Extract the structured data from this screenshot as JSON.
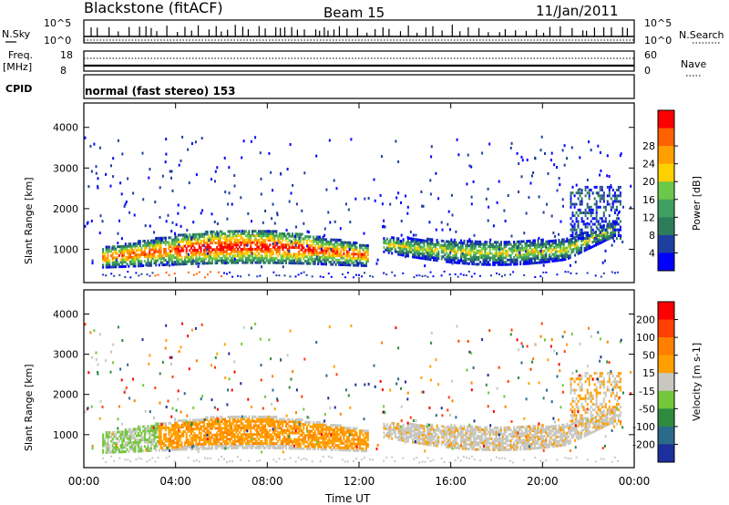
{
  "header": {
    "station": "Blackstone (fitACF)",
    "beam": "Beam 15",
    "date": "11/Jan/2011"
  },
  "status": {
    "nsky_label": "N.Sky",
    "nsearch_label": "N.Search",
    "nsky_ticks": [
      "10^5",
      "10^0"
    ],
    "nsky_right_ticks": [
      "10^5",
      "10^0"
    ],
    "freq_label": "Freq.",
    "freq_unit": "[MHz]",
    "freq_ticks": [
      "18",
      "8"
    ],
    "nave_label": "Nave",
    "nave_ticks": [
      "60",
      "0"
    ],
    "cpid_label": "CPID",
    "cpid_text": "normal (fast stereo) 153"
  },
  "chart_data": [
    {
      "type": "heatmap",
      "name": "power",
      "ylabel": "Slant Range [km]",
      "yticks": [
        1000,
        2000,
        3000,
        4000
      ],
      "ylim": [
        180,
        4600
      ],
      "colorbar": {
        "label": "Power [dB]",
        "ticks": [
          "4",
          "8",
          "12",
          "16",
          "20",
          "24",
          "28"
        ],
        "colors": [
          "#0000ff",
          "#1f3fa0",
          "#2e7d5a",
          "#3fa060",
          "#6cc84a",
          "#ffd000",
          "#ffa000",
          "#ff6000",
          "#ff0000"
        ]
      }
    },
    {
      "type": "heatmap",
      "name": "velocity",
      "ylabel": "Slant Range [km]",
      "yticks": [
        1000,
        2000,
        3000,
        4000
      ],
      "ylim": [
        180,
        4600
      ],
      "colorbar": {
        "label": "Velocity [m s-1]",
        "ticks": [
          "200",
          "100",
          "50",
          "15",
          "-15",
          "-50",
          "-100",
          "-200"
        ],
        "colors": [
          "#1c2f9c",
          "#2a6a8a",
          "#2e8b3f",
          "#72c83a",
          "#c8c8c0",
          "#ffa000",
          "#ff8000",
          "#ff4000",
          "#ff0000"
        ]
      },
      "xlabel": "Time UT",
      "xticks": [
        "00:00",
        "04:00",
        "08:00",
        "12:00",
        "16:00",
        "20:00",
        "00:00"
      ]
    }
  ]
}
